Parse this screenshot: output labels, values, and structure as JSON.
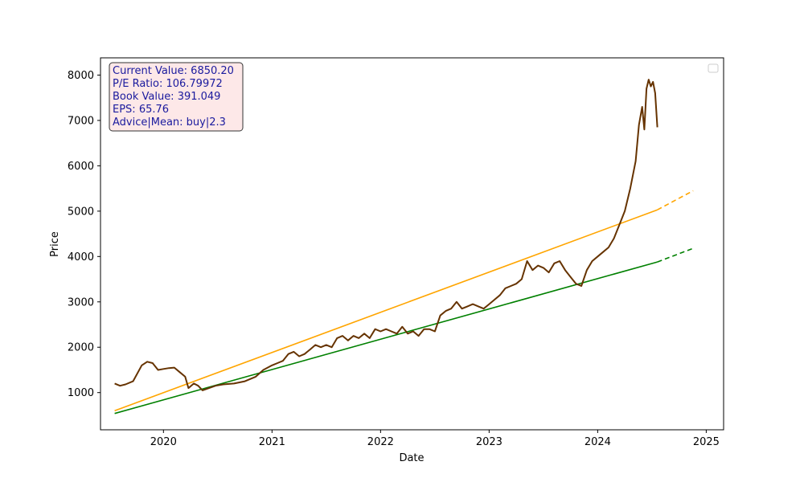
{
  "chart_data": {
    "type": "line",
    "title": "",
    "xlabel": "Date",
    "ylabel": "Price",
    "xlim": [
      2019.42,
      2025.16
    ],
    "ylim": [
      180,
      8380
    ],
    "x_ticks": [
      2020,
      2021,
      2022,
      2023,
      2024,
      2025
    ],
    "x_tick_labels": [
      "2020",
      "2021",
      "2022",
      "2023",
      "2024",
      "2025"
    ],
    "y_ticks": [
      1000,
      2000,
      3000,
      4000,
      5000,
      6000,
      7000,
      8000
    ],
    "y_tick_labels": [
      "1000",
      "2000",
      "3000",
      "4000",
      "5000",
      "6000",
      "7000",
      "8000"
    ],
    "legend": {
      "placement": "top-right",
      "entries": []
    },
    "info_box": {
      "lines": [
        "Current Value: 6850.20",
        "P/E Ratio: 106.79972",
        "Book Value: 391.049",
        "EPS: 65.76",
        "Advice|Mean: buy|2.3"
      ],
      "background": "#fde8e8",
      "border": "#333333",
      "text_color": "#1a1a9e"
    },
    "series": [
      {
        "name": "price",
        "color": "#663300",
        "style": "solid",
        "x": [
          2019.55,
          2019.6,
          2019.65,
          2019.72,
          2019.8,
          2019.85,
          2019.9,
          2019.95,
          2020.0,
          2020.05,
          2020.1,
          2020.15,
          2020.2,
          2020.23,
          2020.28,
          2020.32,
          2020.36,
          2020.42,
          2020.48,
          2020.55,
          2020.65,
          2020.75,
          2020.85,
          2020.92,
          2021.0,
          2021.05,
          2021.1,
          2021.15,
          2021.2,
          2021.25,
          2021.3,
          2021.35,
          2021.4,
          2021.45,
          2021.5,
          2021.55,
          2021.6,
          2021.65,
          2021.7,
          2021.75,
          2021.8,
          2021.85,
          2021.9,
          2021.95,
          2022.0,
          2022.05,
          2022.1,
          2022.15,
          2022.2,
          2022.25,
          2022.3,
          2022.35,
          2022.4,
          2022.45,
          2022.5,
          2022.55,
          2022.6,
          2022.65,
          2022.7,
          2022.75,
          2022.8,
          2022.85,
          2022.9,
          2022.95,
          2023.0,
          2023.05,
          2023.1,
          2023.15,
          2023.2,
          2023.25,
          2023.3,
          2023.35,
          2023.4,
          2023.45,
          2023.5,
          2023.55,
          2023.6,
          2023.65,
          2023.7,
          2023.75,
          2023.8,
          2023.85,
          2023.9,
          2023.95,
          2024.0,
          2024.05,
          2024.1,
          2024.15,
          2024.2,
          2024.25,
          2024.3,
          2024.35,
          2024.38,
          2024.41,
          2024.43,
          2024.45,
          2024.47,
          2024.49,
          2024.51,
          2024.53,
          2024.55
        ],
        "y": [
          1200,
          1150,
          1180,
          1250,
          1600,
          1680,
          1650,
          1500,
          1520,
          1540,
          1550,
          1450,
          1350,
          1100,
          1200,
          1150,
          1050,
          1100,
          1150,
          1180,
          1200,
          1250,
          1350,
          1500,
          1600,
          1650,
          1700,
          1850,
          1900,
          1800,
          1850,
          1950,
          2050,
          2000,
          2050,
          2000,
          2200,
          2250,
          2150,
          2250,
          2200,
          2300,
          2200,
          2400,
          2350,
          2400,
          2350,
          2300,
          2450,
          2300,
          2350,
          2250,
          2400,
          2400,
          2350,
          2700,
          2800,
          2850,
          3000,
          2850,
          2900,
          2950,
          2900,
          2850,
          2950,
          3050,
          3150,
          3300,
          3350,
          3400,
          3500,
          3900,
          3700,
          3800,
          3750,
          3650,
          3850,
          3900,
          3700,
          3550,
          3400,
          3350,
          3700,
          3900,
          4000,
          4100,
          4200,
          4400,
          4700,
          5000,
          5500,
          6100,
          6900,
          7300,
          6800,
          7700,
          7900,
          7750,
          7850,
          7600,
          6850
        ]
      },
      {
        "name": "trend-upper",
        "color": "#ffa500",
        "style": "solid",
        "x": [
          2019.55,
          2024.55
        ],
        "y": [
          600,
          5030
        ]
      },
      {
        "name": "trend-upper-projection",
        "color": "#ffa500",
        "style": "dashed",
        "x": [
          2024.55,
          2024.88
        ],
        "y": [
          5030,
          5450
        ]
      },
      {
        "name": "trend-lower",
        "color": "#008000",
        "style": "solid",
        "x": [
          2019.55,
          2024.55
        ],
        "y": [
          540,
          3880
        ]
      },
      {
        "name": "trend-lower-projection",
        "color": "#008000",
        "style": "dashed",
        "x": [
          2024.55,
          2024.88
        ],
        "y": [
          3880,
          4180
        ]
      }
    ]
  }
}
